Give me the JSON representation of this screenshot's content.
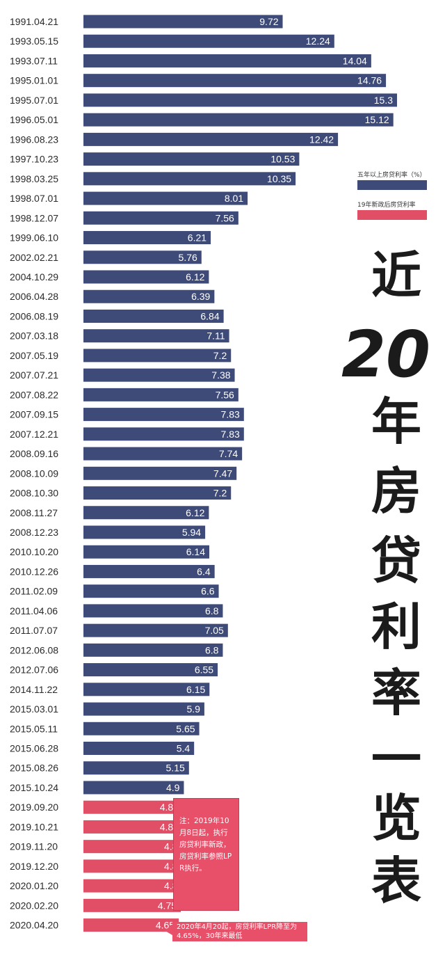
{
  "chart_data": {
    "type": "bar",
    "orientation": "horizontal",
    "title": "近20年房贷利率一览表",
    "categories": [
      "1991.04.21",
      "1993.05.15",
      "1993.07.11",
      "1995.01.01",
      "1995.07.01",
      "1996.05.01",
      "1996.08.23",
      "1997.10.23",
      "1998.03.25",
      "1998.07.01",
      "1998.12.07",
      "1999.06.10",
      "2002.02.21",
      "2004.10.29",
      "2006.04.28",
      "2006.08.19",
      "2007.03.18",
      "2007.05.19",
      "2007.07.21",
      "2007.08.22",
      "2007.09.15",
      "2007.12.21",
      "2008.09.16",
      "2008.10.09",
      "2008.10.30",
      "2008.11.27",
      "2008.12.23",
      "2010.10.20",
      "2010.12.26",
      "2011.02.09",
      "2011.04.06",
      "2011.07.07",
      "2012.06.08",
      "2012.07.06",
      "2014.11.22",
      "2015.03.01",
      "2015.05.11",
      "2015.06.28",
      "2015.08.26",
      "2015.10.24",
      "2019.09.20",
      "2019.10.21",
      "2019.11.20",
      "2019.12.20",
      "2020.01.20",
      "2020.02.20",
      "2020.04.20"
    ],
    "values": [
      9.72,
      12.24,
      14.04,
      14.76,
      15.3,
      15.12,
      12.42,
      10.53,
      10.35,
      8.01,
      7.56,
      6.21,
      5.76,
      6.12,
      6.39,
      6.84,
      7.11,
      7.2,
      7.38,
      7.56,
      7.83,
      7.83,
      7.74,
      7.47,
      7.2,
      6.12,
      5.94,
      6.14,
      6.4,
      6.6,
      6.8,
      7.05,
      6.8,
      6.55,
      6.15,
      5.9,
      5.65,
      5.4,
      5.15,
      4.9,
      4.85,
      4.85,
      4.8,
      4.8,
      4.8,
      4.75,
      4.65
    ],
    "value_labels": [
      "9.72",
      "12.24",
      "14.04",
      "14.76",
      "15.3",
      "15.12",
      "12.42",
      "10.53",
      "10.35",
      "8.01",
      "7.56",
      "6.21",
      "5.76",
      "6.12",
      "6.39",
      "6.84",
      "7.11",
      "7.2",
      "7.38",
      "7.56",
      "7.83",
      "7.83",
      "7.74",
      "7.47",
      "7.2",
      "6.12",
      "5.94",
      "6.14",
      "6.4",
      "6.6",
      "6.8",
      "7.05",
      "6.8",
      "6.55",
      "6.15",
      "5.9",
      "5.65",
      "5.4",
      "5.15",
      "4.9",
      "4.85",
      "4.85",
      "4.8",
      "4.8",
      "4.8",
      "4.75",
      "4.65"
    ],
    "series_index": [
      0,
      0,
      0,
      0,
      0,
      0,
      0,
      0,
      0,
      0,
      0,
      0,
      0,
      0,
      0,
      0,
      0,
      0,
      0,
      0,
      0,
      0,
      0,
      0,
      0,
      0,
      0,
      0,
      0,
      0,
      0,
      0,
      0,
      0,
      0,
      0,
      0,
      0,
      0,
      0,
      1,
      1,
      1,
      1,
      1,
      1,
      1
    ],
    "series": [
      {
        "name": "五年以上房贷利率（%）",
        "color": "#3e4a78"
      },
      {
        "name": "19年新政后房贷利率",
        "color": "#e04f66"
      }
    ],
    "xlim": [
      0,
      15.3
    ],
    "legend_position": "right"
  },
  "title_chars": [
    "近",
    "年",
    "房",
    "贷",
    "利",
    "率",
    "一",
    "览",
    "表"
  ],
  "title_number": "20",
  "note": "注：2019年10月8日起，执行房贷利率新政，房贷利率参照LPR执行。",
  "callout": "2020年4月20起，房贷利率LPR降至为4.65%，30年来最低"
}
